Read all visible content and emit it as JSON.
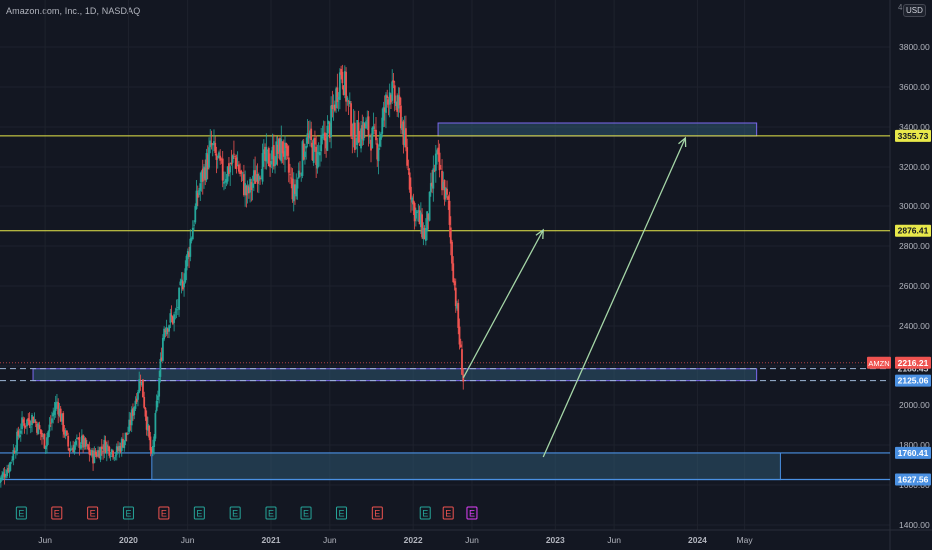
{
  "header": {
    "symbol_title": "Amazon.com, Inc., 1D, NASDAQ",
    "currency": "USD",
    "scale_mode": "4"
  },
  "colors": {
    "background": "#131722",
    "grid": "#1e222d",
    "candle_up": "#26a69a",
    "candle_down": "#ef5350",
    "horizontal_line": "#e8e84a",
    "zone_fill": "#2e5570",
    "zone_border_purple": "#7b68ee",
    "zone_border_blue": "#4a90e2",
    "arrow": "#a5d6a7",
    "axis_text": "#b2b5be",
    "earnings_up": "#26a69a",
    "earnings_down": "#ef5350",
    "dividend_marker": "#e040fb"
  },
  "chart_data": {
    "type": "candlestick",
    "symbol": "AMZN",
    "interval": "1D",
    "exchange": "NASDAQ",
    "ylim": [
      1400,
      4000
    ],
    "y_ticks": [
      1400,
      1600,
      1800,
      2000,
      2200,
      2400,
      2600,
      2800,
      3000,
      3200,
      3400,
      3600,
      3800
    ],
    "x_ticks": [
      {
        "label": "Jun",
        "date": "2019-06"
      },
      {
        "label": "2020",
        "date": "2020-01"
      },
      {
        "label": "Jun",
        "date": "2020-06"
      },
      {
        "label": "2021",
        "date": "2021-01"
      },
      {
        "label": "Jun",
        "date": "2021-06"
      },
      {
        "label": "2022",
        "date": "2022-01"
      },
      {
        "label": "Jun",
        "date": "2022-06"
      },
      {
        "label": "2023",
        "date": "2023-01"
      },
      {
        "label": "Jun",
        "date": "2023-06"
      },
      {
        "label": "2024",
        "date": "2024-01"
      },
      {
        "label": "May",
        "date": "2024-05"
      }
    ],
    "price_path": [
      {
        "date": "2019-02",
        "price": 1610
      },
      {
        "date": "2019-03",
        "price": 1700
      },
      {
        "date": "2019-04",
        "price": 1900
      },
      {
        "date": "2019-05",
        "price": 1940
      },
      {
        "date": "2019-06",
        "price": 1810
      },
      {
        "date": "2019-07",
        "price": 2020
      },
      {
        "date": "2019-08",
        "price": 1780
      },
      {
        "date": "2019-09",
        "price": 1820
      },
      {
        "date": "2019-10",
        "price": 1740
      },
      {
        "date": "2019-11",
        "price": 1800
      },
      {
        "date": "2019-12",
        "price": 1760
      },
      {
        "date": "2020-01",
        "price": 1870
      },
      {
        "date": "2020-02",
        "price": 2150
      },
      {
        "date": "2020-03",
        "price": 1720
      },
      {
        "date": "2020-04",
        "price": 2400
      },
      {
        "date": "2020-05",
        "price": 2450
      },
      {
        "date": "2020-06",
        "price": 2750
      },
      {
        "date": "2020-07",
        "price": 3100
      },
      {
        "date": "2020-08",
        "price": 3300
      },
      {
        "date": "2020-09",
        "price": 3150
      },
      {
        "date": "2020-10",
        "price": 3250
      },
      {
        "date": "2020-11",
        "price": 3050
      },
      {
        "date": "2020-12",
        "price": 3200
      },
      {
        "date": "2021-01",
        "price": 3250
      },
      {
        "date": "2021-02",
        "price": 3300
      },
      {
        "date": "2021-03",
        "price": 3050
      },
      {
        "date": "2021-04",
        "price": 3350
      },
      {
        "date": "2021-05",
        "price": 3250
      },
      {
        "date": "2021-06",
        "price": 3400
      },
      {
        "date": "2021-07",
        "price": 3700
      },
      {
        "date": "2021-08",
        "price": 3350
      },
      {
        "date": "2021-09",
        "price": 3400
      },
      {
        "date": "2021-10",
        "price": 3300
      },
      {
        "date": "2021-11",
        "price": 3600
      },
      {
        "date": "2021-12",
        "price": 3450
      },
      {
        "date": "2022-01",
        "price": 3000
      },
      {
        "date": "2022-02",
        "price": 2850
      },
      {
        "date": "2022-03",
        "price": 3250
      },
      {
        "date": "2022-04",
        "price": 3000
      },
      {
        "date": "2022-04-20",
        "price": 2850
      },
      {
        "date": "2022-05",
        "price": 2300
      },
      {
        "date": "2022-05-24",
        "price": 2125
      }
    ],
    "horizontal_lines": [
      {
        "price": 3355.73,
        "label": "3355.73"
      },
      {
        "price": 2876.41,
        "label": "2876.41"
      }
    ],
    "dashed_lines": [
      {
        "price": 2186.45,
        "label": "2186.45"
      },
      {
        "price": 2125.06,
        "label": "2125.06"
      }
    ],
    "current_price": {
      "symbol": "AMZN",
      "price": 2216.21,
      "label": "2216.21"
    },
    "support_lines": [
      {
        "price": 1760.41,
        "label": "1760.41"
      },
      {
        "price": 1627.56,
        "label": "1627.56"
      }
    ],
    "zones": [
      {
        "name": "resistance-zone",
        "date_start": "2022-03-20",
        "date_end": "2024-06",
        "price_low": 3355,
        "price_high": 3420
      },
      {
        "name": "mid-support-zone",
        "date_start": "2019-05",
        "date_end": "2024-06",
        "price_low": 2125,
        "price_high": 2186
      },
      {
        "name": "lower-support-zone",
        "date_start": "2020-03",
        "date_end": "2024-08",
        "price_low": 1627,
        "price_high": 1760
      }
    ],
    "arrows": [
      {
        "from": {
          "date": "2022-05-24",
          "price": 2140
        },
        "to": {
          "date": "2022-12",
          "price": 2880
        }
      },
      {
        "from": {
          "date": "2022-12",
          "price": 1740
        },
        "to": {
          "date": "2023-12",
          "price": 3345
        }
      }
    ],
    "event_markers": [
      {
        "date": "2019-04",
        "type": "E",
        "kind": "up"
      },
      {
        "date": "2019-07",
        "type": "E",
        "kind": "down"
      },
      {
        "date": "2019-10",
        "type": "E",
        "kind": "down"
      },
      {
        "date": "2020-01",
        "type": "E",
        "kind": "up"
      },
      {
        "date": "2020-04",
        "type": "E",
        "kind": "down"
      },
      {
        "date": "2020-07",
        "type": "E",
        "kind": "up"
      },
      {
        "date": "2020-10",
        "type": "E",
        "kind": "up"
      },
      {
        "date": "2021-01",
        "type": "E",
        "kind": "up"
      },
      {
        "date": "2021-04",
        "type": "E",
        "kind": "up"
      },
      {
        "date": "2021-07",
        "type": "E",
        "kind": "up"
      },
      {
        "date": "2021-10",
        "type": "E",
        "kind": "down"
      },
      {
        "date": "2022-02",
        "type": "E",
        "kind": "up"
      },
      {
        "date": "2022-04",
        "type": "E",
        "kind": "down"
      },
      {
        "date": "2022-06",
        "type": "E",
        "kind": "split"
      }
    ]
  }
}
